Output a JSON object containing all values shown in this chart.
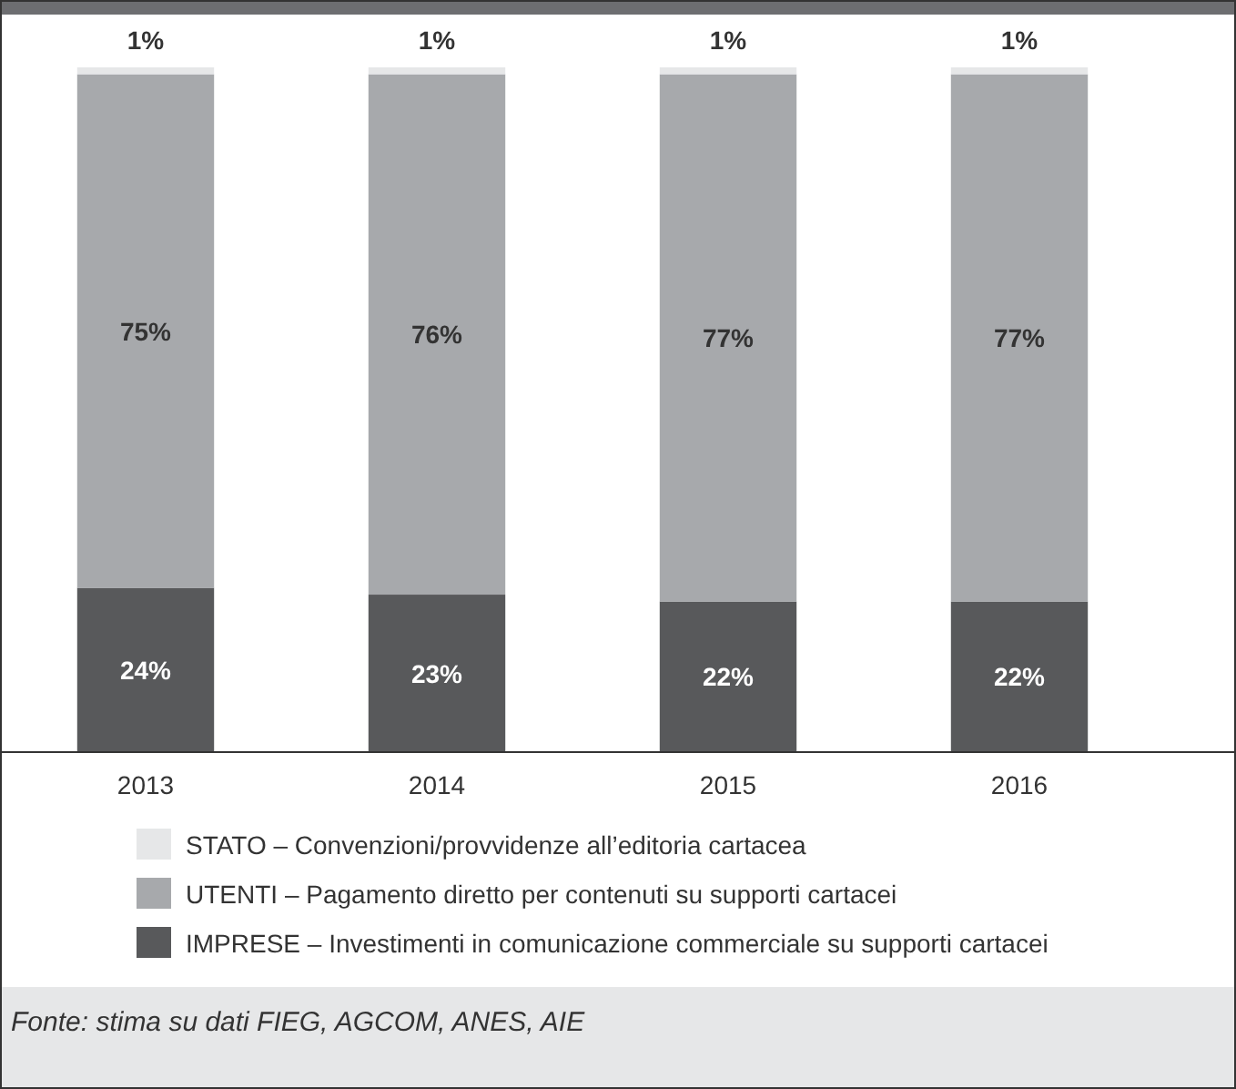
{
  "chart_data": {
    "type": "bar",
    "stacked": true,
    "legend": "bottom",
    "categories": [
      "2013",
      "2014",
      "2015",
      "2016"
    ],
    "series": [
      {
        "name": "IMPRESE – Investimenti in comunicazione commerciale su supporti cartacei",
        "color": "#58595b",
        "values": [
          24,
          23,
          22,
          22
        ],
        "value_labels": [
          "24%",
          "23%",
          "22%",
          "22%"
        ]
      },
      {
        "name": "UTENTI – Pagamento diretto per contenuti su supporti cartacei",
        "color": "#a7a9ac",
        "values": [
          75,
          76,
          77,
          77
        ],
        "value_labels": [
          "75%",
          "76%",
          "77%",
          "77%"
        ]
      },
      {
        "name": "STATO – Convenzioni/provvidenze all’editoria cartacea",
        "color": "#e6e7e8",
        "values": [
          1,
          1,
          1,
          1
        ],
        "value_labels": [
          "1%",
          "1%",
          "1%",
          "1%"
        ]
      }
    ],
    "annotations": [
      "Fonte: stima su dati FIEG, AGCOM, ANES, AIE"
    ]
  }
}
